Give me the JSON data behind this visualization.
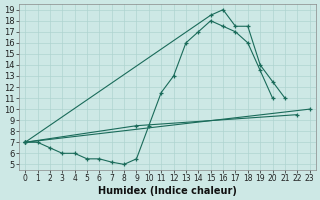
{
  "xlabel": "Humidex (Indice chaleur)",
  "bg_color": "#cde8e5",
  "grid_color": "#afd4d0",
  "line_color": "#1a6b5a",
  "curves": [
    {
      "x": [
        0,
        1,
        2,
        3,
        4,
        5,
        6,
        7,
        8,
        9,
        10,
        11,
        12,
        13,
        14,
        15,
        16,
        17,
        18,
        19,
        20
      ],
      "y": [
        7.0,
        7.0,
        6.5,
        6.0,
        6.0,
        5.5,
        5.5,
        5.2,
        5.0,
        5.5,
        8.5,
        11.5,
        13.0,
        16.0,
        17.0,
        18.0,
        17.5,
        17.0,
        16.0,
        13.5,
        11.0
      ]
    },
    {
      "x": [
        0,
        15,
        16,
        17,
        18,
        19,
        20,
        21
      ],
      "y": [
        7.0,
        18.5,
        19.0,
        17.5,
        17.5,
        14.0,
        12.5,
        11.0
      ]
    },
    {
      "x": [
        0,
        23
      ],
      "y": [
        7.0,
        10.0
      ]
    },
    {
      "x": [
        0,
        9,
        22
      ],
      "y": [
        7.0,
        8.5,
        9.5
      ]
    }
  ],
  "xlim": [
    -0.5,
    23.5
  ],
  "ylim": [
    4.5,
    19.5
  ],
  "yticks": [
    5,
    6,
    7,
    8,
    9,
    10,
    11,
    12,
    13,
    14,
    15,
    16,
    17,
    18,
    19
  ],
  "xticks": [
    0,
    1,
    2,
    3,
    4,
    5,
    6,
    7,
    8,
    9,
    10,
    11,
    12,
    13,
    14,
    15,
    16,
    17,
    18,
    19,
    20,
    21,
    22,
    23
  ]
}
